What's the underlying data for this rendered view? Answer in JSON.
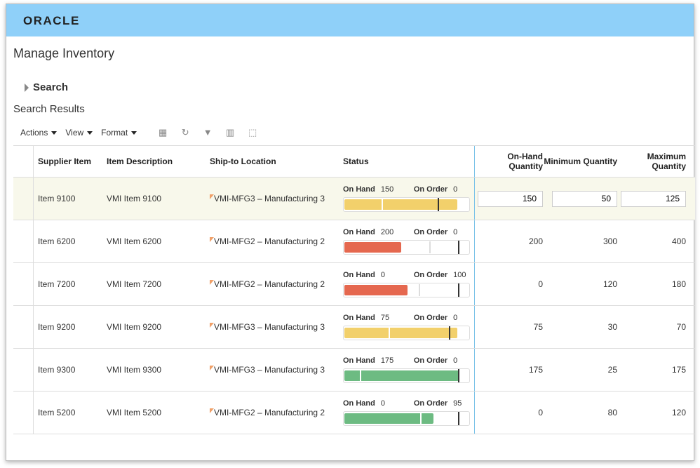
{
  "brand": "ORACLE",
  "page_title": "Manage Inventory",
  "search_label": "Search",
  "results_label": "Search Results",
  "toolbar": {
    "actions": "Actions",
    "view": "View",
    "format": "Format"
  },
  "columns": {
    "supplier_item": "Supplier Item",
    "item_description": "Item Description",
    "ship_to": "Ship-to Location",
    "status": "Status",
    "on_hand": "On-Hand Quantity",
    "minimum": "Minimum Quantity",
    "maximum": "Maximum Quantity"
  },
  "status_labels": {
    "on_hand": "On Hand",
    "on_order": "On Order"
  },
  "colors": {
    "yellow": "#f2d06b",
    "red": "#e5684f",
    "green": "#6dbb82"
  },
  "rows": [
    {
      "item": "Item 9100",
      "desc": "VMI Item 9100",
      "loc": "VMI-MFG3 – Manufacturing 3",
      "on_hand": "150",
      "on_order": "0",
      "qty": "150",
      "min": "50",
      "max": "125",
      "color": "yellow",
      "fill": 0.9,
      "min_mark": 0.3,
      "max_mark": 0.75,
      "editable": true
    },
    {
      "item": "Item 6200",
      "desc": "VMI Item 6200",
      "loc": "VMI-MFG2 – Manufacturing 2",
      "on_hand": "200",
      "on_order": "0",
      "qty": "200",
      "min": "300",
      "max": "400",
      "color": "red",
      "fill": 0.45,
      "min_mark": 0.68,
      "max_mark": 0.91
    },
    {
      "item": "Item 7200",
      "desc": "VMI Item 7200",
      "loc": "VMI-MFG2 – Manufacturing 2",
      "on_hand": "0",
      "on_order": "100",
      "qty": "0",
      "min": "120",
      "max": "180",
      "color": "red",
      "fill": 0.5,
      "min_mark": 0.6,
      "max_mark": 0.91
    },
    {
      "item": "Item 9200",
      "desc": "VMI Item 9200",
      "loc": "VMI-MFG3 – Manufacturing 3",
      "on_hand": "75",
      "on_order": "0",
      "qty": "75",
      "min": "30",
      "max": "70",
      "color": "yellow",
      "fill": 0.9,
      "min_mark": 0.36,
      "max_mark": 0.84
    },
    {
      "item": "Item 9300",
      "desc": "VMI Item 9300",
      "loc": "VMI-MFG3 – Manufacturing 3",
      "on_hand": "175",
      "on_order": "0",
      "qty": "175",
      "min": "25",
      "max": "175",
      "color": "green",
      "fill": 0.91,
      "min_mark": 0.13,
      "max_mark": 0.91
    },
    {
      "item": "Item 5200",
      "desc": "VMI Item 5200",
      "loc": "VMI-MFG2 – Manufacturing 2",
      "on_hand": "0",
      "on_order": "95",
      "qty": "0",
      "min": "80",
      "max": "120",
      "color": "green",
      "fill": 0.71,
      "min_mark": 0.61,
      "max_mark": 0.91
    }
  ]
}
